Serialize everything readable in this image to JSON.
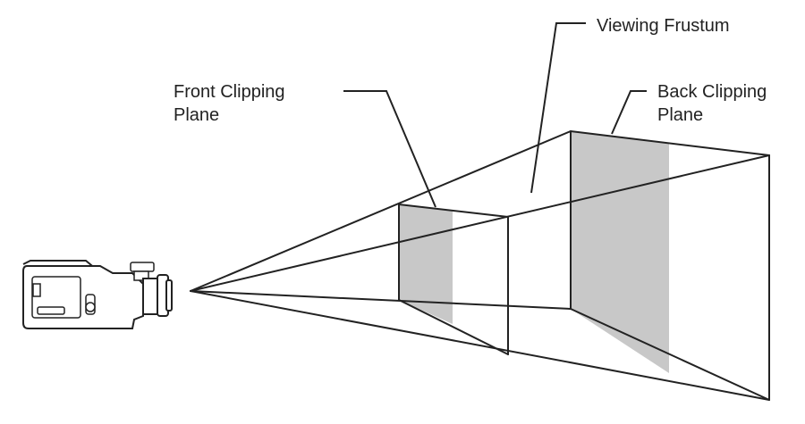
{
  "diagram": {
    "labels": {
      "viewing_frustum": "Viewing Frustum",
      "front_clipping_plane_line1": "Front Clipping",
      "front_clipping_plane_line2": "Plane",
      "back_clipping_plane_line1": "Back Clipping",
      "back_clipping_plane_line2": "Plane"
    },
    "icons": {
      "camera": "video-camera-icon"
    },
    "colors": {
      "line": "#222222",
      "plane_shading": "#c8c8c8",
      "background": "#ffffff"
    }
  }
}
